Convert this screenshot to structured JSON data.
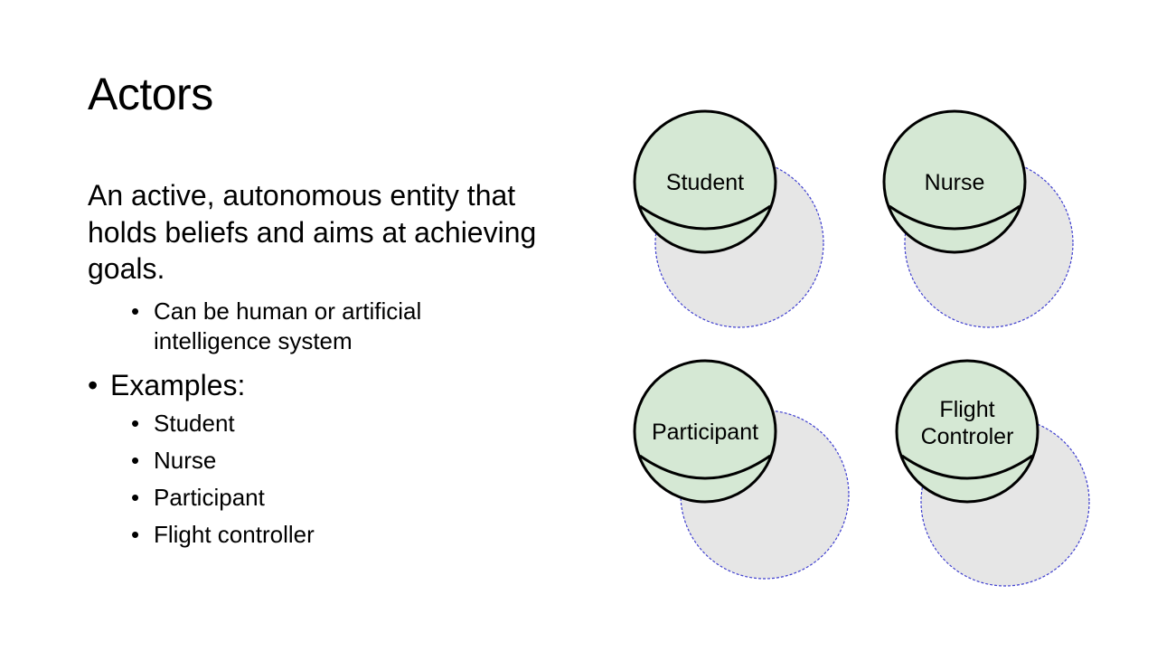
{
  "slide": {
    "title": "Actors",
    "definition": "An active, autonomous entity that holds beliefs and aims at achieving goals.",
    "definition_points": [
      "Can be human or artificial intelligence system"
    ],
    "examples_label": "Examples:",
    "examples": [
      "Student",
      "Nurse",
      "Participant",
      "Flight controller"
    ]
  },
  "diagram": {
    "actors": [
      {
        "label_lines": [
          "Student"
        ]
      },
      {
        "label_lines": [
          "Nurse"
        ]
      },
      {
        "label_lines": [
          "Participant"
        ]
      },
      {
        "label_lines": [
          "Flight",
          "Controler"
        ]
      }
    ],
    "colors": {
      "actor_fill": "#d5e8d4",
      "actor_stroke": "#000000",
      "boundary_fill": "#e6e6e6",
      "boundary_stroke": "#3f3fcf"
    }
  }
}
